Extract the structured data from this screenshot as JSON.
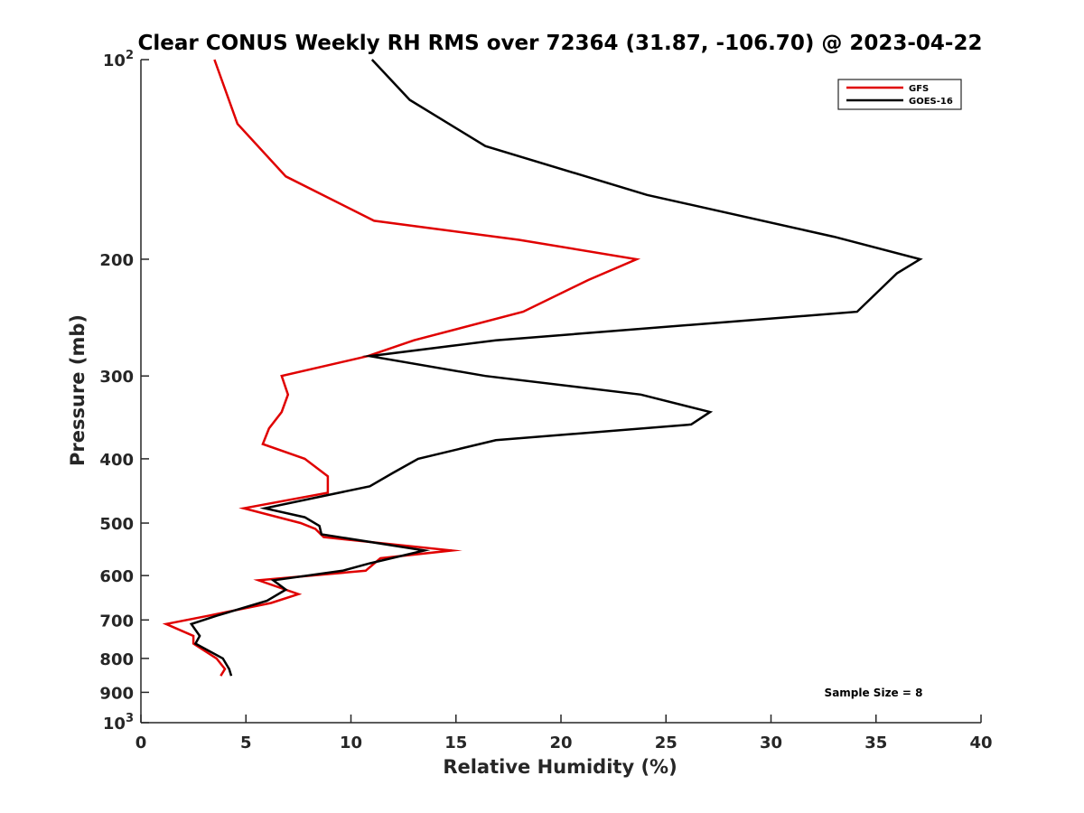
{
  "chart_data": {
    "type": "line",
    "title": "Clear CONUS Weekly RH RMS over 72364 (31.87, -106.70) @ 2023-04-22",
    "xlabel": "Relative Humidity (%)",
    "ylabel": "Pressure (mb)",
    "xlim": [
      0,
      40
    ],
    "ylim": [
      100,
      1000
    ],
    "yscale": "log",
    "y_reversed": true,
    "grid": false,
    "legend_position": "top-right",
    "x_ticks": [
      0,
      5,
      10,
      15,
      20,
      25,
      30,
      35,
      40
    ],
    "x_tick_labels": [
      "0",
      "5",
      "10",
      "15",
      "20",
      "25",
      "30",
      "35",
      "40"
    ],
    "y_ticks": [
      100,
      200,
      300,
      400,
      500,
      600,
      700,
      800,
      900,
      1000
    ],
    "y_tick_labels": [
      {
        "base": "10",
        "exp": "2"
      },
      {
        "base": "200",
        "exp": ""
      },
      {
        "base": "300",
        "exp": ""
      },
      {
        "base": "400",
        "exp": ""
      },
      {
        "base": "500",
        "exp": ""
      },
      {
        "base": "600",
        "exp": ""
      },
      {
        "base": "700",
        "exp": ""
      },
      {
        "base": "800",
        "exp": ""
      },
      {
        "base": "900",
        "exp": ""
      },
      {
        "base": "10",
        "exp": "3"
      }
    ],
    "annotation": "Sample Size = 8",
    "series": [
      {
        "name": "GFS",
        "color": "#e00000",
        "points": [
          [
            3.5,
            100
          ],
          [
            4.6,
            125
          ],
          [
            6.9,
            150
          ],
          [
            11.1,
            175
          ],
          [
            18.0,
            187
          ],
          [
            23.6,
            200
          ],
          [
            21.3,
            215
          ],
          [
            18.2,
            240
          ],
          [
            13.0,
            265
          ],
          [
            10.8,
            280
          ],
          [
            6.7,
            300
          ],
          [
            7.0,
            320
          ],
          [
            6.7,
            340
          ],
          [
            6.1,
            360
          ],
          [
            5.8,
            380
          ],
          [
            7.8,
            400
          ],
          [
            8.9,
            425
          ],
          [
            8.9,
            450
          ],
          [
            4.9,
            475
          ],
          [
            7.6,
            500
          ],
          [
            8.3,
            510
          ],
          [
            8.7,
            525
          ],
          [
            14.8,
            550
          ],
          [
            11.4,
            565
          ],
          [
            10.7,
            590
          ],
          [
            5.6,
            610
          ],
          [
            7.5,
            640
          ],
          [
            6.2,
            660
          ],
          [
            3.2,
            690
          ],
          [
            1.2,
            710
          ],
          [
            2.5,
            740
          ],
          [
            2.5,
            760
          ],
          [
            3.6,
            800
          ],
          [
            4.0,
            830
          ],
          [
            3.8,
            850
          ]
        ]
      },
      {
        "name": "GOES-16",
        "color": "#000000",
        "points": [
          [
            11.0,
            100
          ],
          [
            12.8,
            115
          ],
          [
            16.4,
            135
          ],
          [
            24.1,
            160
          ],
          [
            33.0,
            185
          ],
          [
            37.1,
            200
          ],
          [
            36.0,
            210
          ],
          [
            34.1,
            240
          ],
          [
            16.9,
            265
          ],
          [
            10.9,
            280
          ],
          [
            16.4,
            300
          ],
          [
            23.8,
            320
          ],
          [
            27.1,
            340
          ],
          [
            26.2,
            355
          ],
          [
            16.9,
            375
          ],
          [
            13.2,
            400
          ],
          [
            12.0,
            420
          ],
          [
            10.9,
            440
          ],
          [
            5.9,
            475
          ],
          [
            7.8,
            490
          ],
          [
            8.5,
            505
          ],
          [
            8.6,
            520
          ],
          [
            13.5,
            550
          ],
          [
            10.9,
            575
          ],
          [
            9.6,
            590
          ],
          [
            6.3,
            610
          ],
          [
            6.9,
            630
          ],
          [
            6.0,
            655
          ],
          [
            3.6,
            690
          ],
          [
            2.4,
            710
          ],
          [
            2.8,
            740
          ],
          [
            2.6,
            760
          ],
          [
            3.9,
            800
          ],
          [
            4.2,
            830
          ],
          [
            4.3,
            850
          ]
        ]
      }
    ]
  }
}
